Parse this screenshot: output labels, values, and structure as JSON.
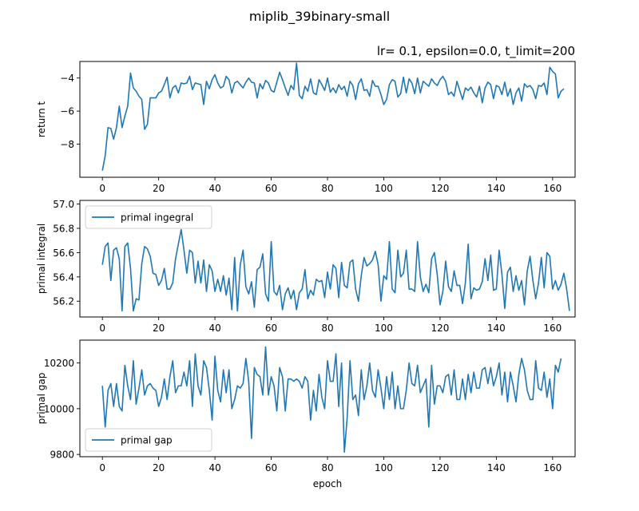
{
  "figure": {
    "suptitle": "miplib_39binary-small"
  },
  "chart_data": [
    {
      "type": "line",
      "title": "lr= 0.1, epsilon=0.0, t_limit=200",
      "xlabel": "",
      "ylabel": "return t",
      "xlim": [
        -8,
        168
      ],
      "ylim": [
        -10.0,
        -3.0
      ],
      "xticks": [
        0,
        20,
        40,
        60,
        80,
        100,
        120,
        140,
        160
      ],
      "yticks": [
        -8,
        -6,
        -4
      ],
      "ytick_labels": [
        "−8",
        "−6",
        "−4"
      ],
      "legend": null,
      "color": "#1f77b4",
      "series": [
        {
          "x_start": 0,
          "values": [
            -9.6,
            -8.7,
            -7.0,
            -7.05,
            -7.7,
            -7.0,
            -5.7,
            -7.0,
            -6.3,
            -5.7,
            -3.7,
            -4.6,
            -4.8,
            -5.1,
            -5.3,
            -7.1,
            -6.8,
            -5.2,
            -5.2,
            -5.2,
            -4.9,
            -4.8,
            -4.4,
            -3.95,
            -5.2,
            -4.6,
            -4.45,
            -4.9,
            -4.3,
            -4.35,
            -4.3,
            -3.9,
            -4.7,
            -4.3,
            -4.35,
            -4.4,
            -5.6,
            -4.2,
            -4.65,
            -4.1,
            -3.8,
            -4.3,
            -4.6,
            -4.5,
            -3.9,
            -4.1,
            -4.9,
            -4.3,
            -4.2,
            -4.4,
            -4.6,
            -4.25,
            -4.0,
            -4.25,
            -4.3,
            -5.2,
            -4.35,
            -4.65,
            -4.15,
            -4.3,
            -4.75,
            -4.85,
            -4.25,
            -3.65,
            -4.1,
            -4.6,
            -5.05,
            -4.45,
            -4.7,
            -3.1,
            -5.05,
            -5.25,
            -4.5,
            -4.8,
            -4.05,
            -4.9,
            -5.0,
            -4.1,
            -4.4,
            -4.75,
            -4.0,
            -4.85,
            -4.6,
            -4.9,
            -4.4,
            -4.7,
            -4.5,
            -5.1,
            -4.2,
            -4.45,
            -5.3,
            -4.35,
            -4.05,
            -4.75,
            -4.7,
            -5.1,
            -4.15,
            -4.5,
            -4.5,
            -5.0,
            -5.6,
            -5.3,
            -4.4,
            -4.1,
            -4.2,
            -5.15,
            -4.95,
            -3.95,
            -4.9,
            -4.05,
            -4.3,
            -4.95,
            -4.0,
            -4.9,
            -4.2,
            -4.35,
            -4.5,
            -4.05,
            -4.3,
            -4.45,
            -4.1,
            -3.9,
            -4.2,
            -5.0,
            -4.85,
            -5.1,
            -4.2,
            -4.75,
            -5.3,
            -4.6,
            -4.75,
            -4.55,
            -4.9,
            -5.15,
            -4.5,
            -5.5,
            -4.6,
            -4.25,
            -4.4,
            -5.25,
            -4.45,
            -4.55,
            -5.0,
            -4.25,
            -5.1,
            -4.65,
            -5.6,
            -4.9,
            -4.6,
            -5.4,
            -4.35,
            -4.55,
            -4.45,
            -4.7,
            -5.25,
            -4.45,
            -4.5,
            -4.3,
            -5.0,
            -3.35,
            -3.6,
            -3.75,
            -5.2,
            -4.8,
            -4.65
          ]
        }
      ]
    },
    {
      "type": "line",
      "title": "",
      "xlabel": "",
      "ylabel": "primal integral",
      "xlim": [
        -8,
        168
      ],
      "ylim": [
        56.07,
        57.03
      ],
      "xticks": [
        0,
        20,
        40,
        60,
        80,
        100,
        120,
        140,
        160
      ],
      "yticks": [
        56.2,
        56.4,
        56.6,
        56.8,
        57.0
      ],
      "ytick_labels": [
        "56.2",
        "56.4",
        "56.6",
        "56.8",
        "57.0"
      ],
      "legend": "upper left",
      "color": "#1f77b4",
      "series": [
        {
          "name": "primal ingegral",
          "x_start": 0,
          "values": [
            56.5,
            56.65,
            56.68,
            56.37,
            56.62,
            56.64,
            56.55,
            56.12,
            56.65,
            56.68,
            56.47,
            56.12,
            56.22,
            56.21,
            56.51,
            56.65,
            56.63,
            56.57,
            56.43,
            56.42,
            56.33,
            56.37,
            56.47,
            56.3,
            56.3,
            56.35,
            56.55,
            56.67,
            56.79,
            56.62,
            56.43,
            56.62,
            56.6,
            56.35,
            56.53,
            56.35,
            56.54,
            56.28,
            56.5,
            56.45,
            56.28,
            56.38,
            56.28,
            56.41,
            56.25,
            56.39,
            56.13,
            56.56,
            56.12,
            56.5,
            56.62,
            56.32,
            56.26,
            56.36,
            56.15,
            56.46,
            56.48,
            56.59,
            56.26,
            56.2,
            56.69,
            56.28,
            56.25,
            56.33,
            56.13,
            56.26,
            56.31,
            56.22,
            56.29,
            56.13,
            56.27,
            56.3,
            56.46,
            56.22,
            56.29,
            56.25,
            56.38,
            56.36,
            56.37,
            56.23,
            56.44,
            56.3,
            56.5,
            56.47,
            56.23,
            56.52,
            56.33,
            56.31,
            56.52,
            56.54,
            56.3,
            56.2,
            56.41,
            56.56,
            56.49,
            56.51,
            56.54,
            56.61,
            56.5,
            56.2,
            56.41,
            56.38,
            56.69,
            56.3,
            56.27,
            56.62,
            56.4,
            56.43,
            56.62,
            56.3,
            56.3,
            56.28,
            56.69,
            56.4,
            56.28,
            56.34,
            56.27,
            56.55,
            56.6,
            56.42,
            56.17,
            56.28,
            56.53,
            56.32,
            56.28,
            56.45,
            56.33,
            56.33,
            56.18,
            56.35,
            56.67,
            56.22,
            56.31,
            56.29,
            56.3,
            56.36,
            56.55,
            56.37,
            56.58,
            56.29,
            56.3,
            56.62,
            56.42,
            56.14,
            56.44,
            56.48,
            56.28,
            56.41,
            56.29,
            56.37,
            56.17,
            56.45,
            56.57,
            56.37,
            56.22,
            56.35,
            56.56,
            56.31,
            56.6,
            56.57,
            56.3,
            56.37,
            56.29,
            56.34,
            56.43,
            56.3,
            56.12
          ]
        }
      ]
    },
    {
      "type": "line",
      "title": "",
      "xlabel": "epoch",
      "ylabel": "primal gap",
      "xlim": [
        -8,
        168
      ],
      "ylim": [
        9790,
        10300
      ],
      "xticks": [
        0,
        20,
        40,
        60,
        80,
        100,
        120,
        140,
        160
      ],
      "yticks": [
        9800,
        10000,
        10200
      ],
      "ytick_labels": [
        "9800",
        "10000",
        "10200"
      ],
      "legend": "lower left",
      "color": "#1f77b4",
      "series": [
        {
          "name": "primal gap",
          "x_start": 0,
          "values": [
            10100,
            9920,
            10080,
            10110,
            10010,
            10110,
            10010,
            9990,
            10190,
            10100,
            10040,
            10210,
            10020,
            10090,
            10170,
            10060,
            10100,
            10110,
            10090,
            10080,
            10010,
            10050,
            10130,
            10040,
            10140,
            10210,
            10070,
            10100,
            10100,
            10160,
            10100,
            10210,
            10010,
            10240,
            10100,
            10060,
            10210,
            10180,
            10080,
            9950,
            10230,
            10080,
            10030,
            10170,
            10070,
            10170,
            10000,
            10040,
            10100,
            10090,
            10110,
            10220,
            10120,
            9870,
            10180,
            10150,
            10140,
            10060,
            10270,
            10060,
            10140,
            10100,
            9990,
            10180,
            10140,
            9990,
            10130,
            10130,
            10120,
            10130,
            10120,
            10090,
            10140,
            10120,
            9950,
            10080,
            9990,
            10150,
            10050,
            10000,
            10210,
            10120,
            10120,
            10240,
            10010,
            10200,
            9810,
            9960,
            10210,
            10040,
            10060,
            9970,
            10170,
            10040,
            10100,
            10200,
            10080,
            10050,
            10170,
            10090,
            10000,
            10140,
            10040,
            10160,
            10000,
            10100,
            10000,
            10000,
            10080,
            10200,
            10110,
            10100,
            10190,
            10070,
            10100,
            10130,
            9920,
            10190,
            10020,
            10100,
            10100,
            10070,
            10140,
            10150,
            10060,
            10170,
            10040,
            10040,
            10130,
            10040,
            10150,
            10070,
            10160,
            10090,
            10090,
            10170,
            10180,
            10110,
            10180,
            10100,
            10140,
            10200,
            10060,
            10160,
            10030,
            10160,
            10100,
            10030,
            10150,
            10220,
            10170,
            10080,
            10040,
            10040,
            10210,
            10090,
            10080,
            10160,
            10050,
            10130,
            10000,
            10190,
            10160,
            10220
          ]
        }
      ]
    }
  ]
}
